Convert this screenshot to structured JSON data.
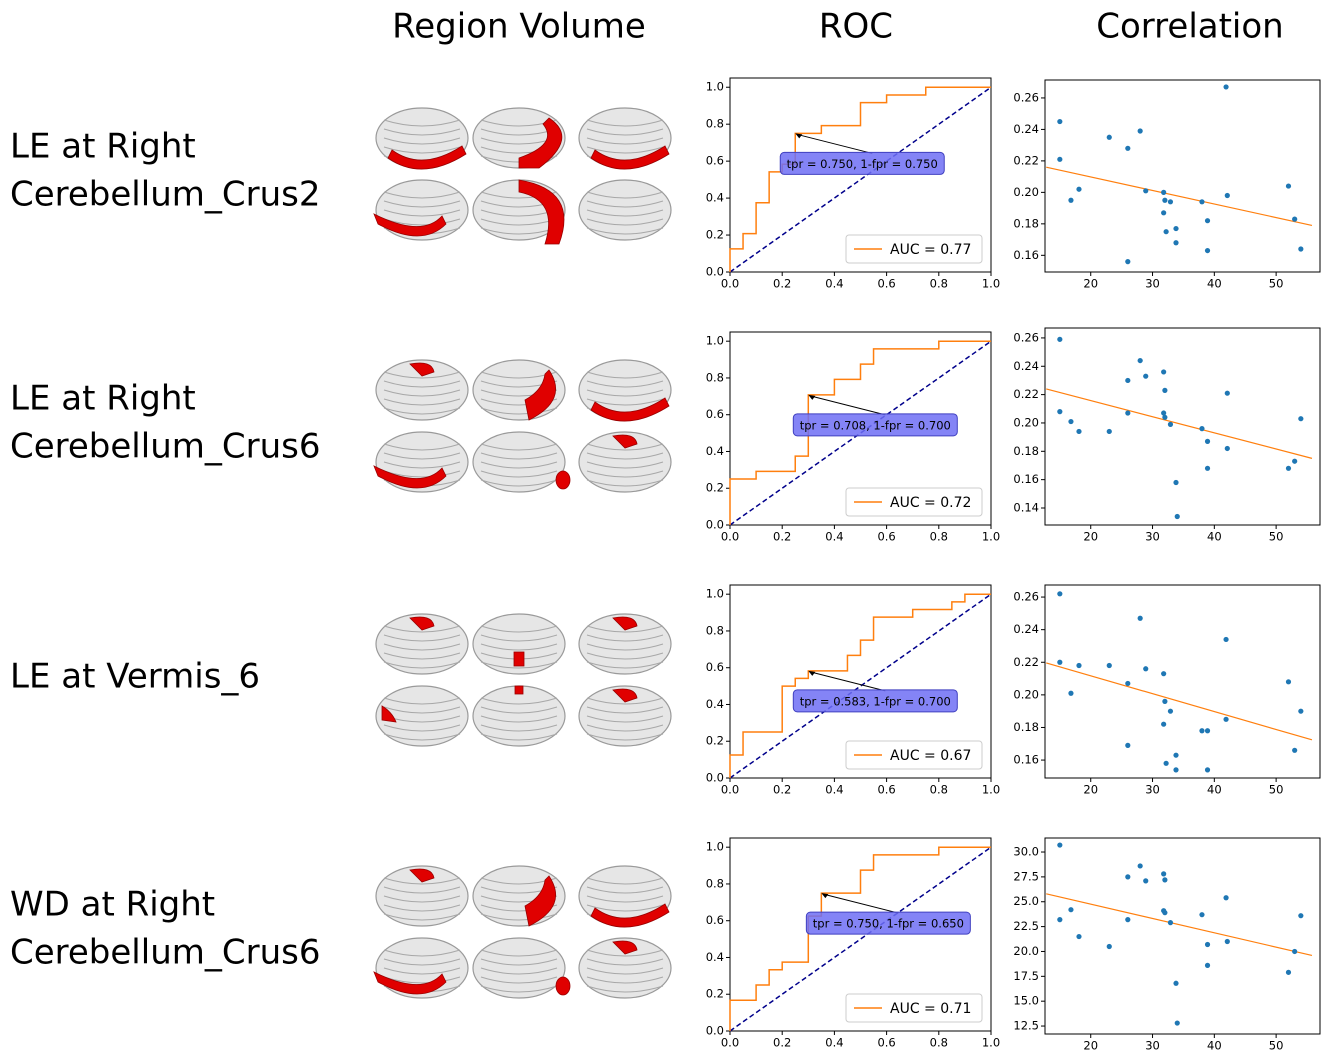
{
  "column_headers": [
    "Region Volume",
    "ROC",
    "Correlation"
  ],
  "row_labels": [
    [
      "LE at Right",
      "Cerebellum_Crus2"
    ],
    [
      "LE at Right",
      "Cerebellum_Crus6"
    ],
    [
      "LE at Vermis_6"
    ],
    [
      "WD at Right",
      "Cerebellum_Crus6"
    ]
  ],
  "chart_data": [
    {
      "type": "line",
      "x": [
        0,
        0,
        0.05,
        0.05,
        0.1,
        0.1,
        0.15,
        0.15,
        0.2,
        0.2,
        0.25,
        0.25,
        0.35,
        0.35,
        0.5,
        0.5,
        0.6,
        0.6,
        0.75,
        0.75,
        1.0
      ],
      "series": [
        {
          "name": "AUC = 0.77",
          "color": "#ff7f0e",
          "values": [
            0,
            0.125,
            0.125,
            0.208,
            0.208,
            0.375,
            0.375,
            0.542,
            0.542,
            0.583,
            0.583,
            0.75,
            0.75,
            0.792,
            0.792,
            0.917,
            0.917,
            0.958,
            0.958,
            1.0,
            1.0
          ]
        }
      ],
      "annotation": {
        "text": "tpr = 0.750, 1-fpr = 0.750",
        "x": 0.25,
        "y": 0.75
      },
      "xlim": [
        0,
        1
      ],
      "ylim": [
        0,
        1.05
      ],
      "xticks": [
        {
          "value": 0,
          "label": "0.0"
        },
        0.2,
        0.4,
        0.6,
        0.8,
        {
          "value": 1,
          "label": "1.0"
        }
      ],
      "yticks": [
        {
          "value": 0,
          "label": "0.0"
        },
        0.2,
        0.4,
        0.6,
        0.8,
        {
          "value": 1,
          "label": "1.0"
        }
      ],
      "legend": "lower right"
    },
    {
      "type": "scatter",
      "x": [
        15,
        15,
        16.8,
        18.1,
        23,
        26,
        26,
        28,
        28.9,
        31.8,
        32,
        31.8,
        32.2,
        32.9,
        33.8,
        33.8,
        38,
        38.9,
        38.9,
        41.9,
        42.1,
        52,
        53,
        54
      ],
      "series": [
        {
          "color": "#1f77b4",
          "values": [
            0.245,
            0.221,
            0.195,
            0.202,
            0.235,
            0.228,
            0.156,
            0.239,
            0.201,
            0.2,
            0.195,
            0.187,
            0.175,
            0.194,
            0.177,
            0.168,
            0.194,
            0.182,
            0.163,
            0.267,
            0.198,
            0.204,
            0.183,
            0.164
          ]
        }
      ],
      "fit": {
        "x": [
          12.8,
          55.8
        ],
        "values": [
          0.216,
          0.179
        ],
        "color": "#ff7f0e"
      },
      "xlim": [
        12.6,
        57.1
      ],
      "ylim": [
        0.1494,
        0.2714
      ],
      "xticks": [
        20,
        30,
        40,
        50
      ],
      "yticks": [
        0.16,
        0.18,
        {
          "value": 0.2,
          "label": "0.20"
        },
        0.22,
        0.24,
        0.26
      ]
    },
    {
      "type": "line",
      "x": [
        0,
        0,
        0.1,
        0.1,
        0.25,
        0.25,
        0.3,
        0.3,
        0.4,
        0.4,
        0.5,
        0.5,
        0.55,
        0.55,
        0.8,
        0.8,
        1.0
      ],
      "series": [
        {
          "name": "AUC = 0.72",
          "color": "#ff7f0e",
          "values": [
            0,
            0.25,
            0.25,
            0.292,
            0.292,
            0.375,
            0.375,
            0.708,
            0.708,
            0.792,
            0.792,
            0.875,
            0.875,
            0.958,
            0.958,
            1.0,
            1.0
          ]
        }
      ],
      "annotation": {
        "text": "tpr = 0.708, 1-fpr = 0.700",
        "x": 0.3,
        "y": 0.708
      },
      "xlim": [
        0,
        1
      ],
      "ylim": [
        0,
        1.05
      ],
      "xticks": [
        {
          "value": 0,
          "label": "0.0"
        },
        0.2,
        0.4,
        0.6,
        0.8,
        {
          "value": 1,
          "label": "1.0"
        }
      ],
      "yticks": [
        {
          "value": 0,
          "label": "0.0"
        },
        0.2,
        0.4,
        0.6,
        0.8,
        {
          "value": 1,
          "label": "1.0"
        }
      ],
      "legend": "lower right"
    },
    {
      "type": "scatter",
      "x": [
        15,
        15,
        16.8,
        18.1,
        23,
        26,
        26,
        28,
        28.9,
        31.8,
        32,
        31.8,
        32,
        32.9,
        33.8,
        34,
        38,
        38.9,
        38.9,
        42.1,
        42.1,
        52,
        53,
        54
      ],
      "series": [
        {
          "color": "#1f77b4",
          "values": [
            0.259,
            0.208,
            0.201,
            0.194,
            0.194,
            0.23,
            0.207,
            0.244,
            0.233,
            0.236,
            0.223,
            0.207,
            0.204,
            0.199,
            0.158,
            0.134,
            0.196,
            0.187,
            0.168,
            0.221,
            0.182,
            0.168,
            0.173,
            0.203
          ]
        }
      ],
      "fit": {
        "x": [
          12.8,
          55.8
        ],
        "values": [
          0.224,
          0.175
        ],
        "color": "#ff7f0e"
      },
      "xlim": [
        12.6,
        57.1
      ],
      "ylim": [
        0.128,
        0.267
      ],
      "xticks": [
        20,
        30,
        40,
        50
      ],
      "yticks": [
        0.14,
        0.16,
        0.18,
        {
          "value": 0.2,
          "label": "0.20"
        },
        0.22,
        0.24,
        0.26
      ]
    },
    {
      "type": "line",
      "x": [
        0,
        0,
        0.05,
        0.05,
        0.2,
        0.2,
        0.25,
        0.25,
        0.3,
        0.3,
        0.45,
        0.45,
        0.5,
        0.5,
        0.55,
        0.55,
        0.7,
        0.7,
        0.85,
        0.85,
        0.9,
        0.9,
        1.0
      ],
      "series": [
        {
          "name": "AUC = 0.67",
          "color": "#ff7f0e",
          "values": [
            0,
            0.125,
            0.125,
            0.25,
            0.25,
            0.5,
            0.5,
            0.542,
            0.542,
            0.583,
            0.583,
            0.667,
            0.667,
            0.75,
            0.75,
            0.875,
            0.875,
            0.917,
            0.917,
            0.958,
            0.958,
            1.0,
            1.0
          ]
        }
      ],
      "annotation": {
        "text": "tpr = 0.583, 1-fpr = 0.700",
        "x": 0.3,
        "y": 0.583
      },
      "xlim": [
        0,
        1
      ],
      "ylim": [
        0,
        1.05
      ],
      "xticks": [
        {
          "value": 0,
          "label": "0.0"
        },
        0.2,
        0.4,
        0.6,
        0.8,
        {
          "value": 1,
          "label": "1.0"
        }
      ],
      "yticks": [
        {
          "value": 0,
          "label": "0.0"
        },
        0.2,
        0.4,
        0.6,
        0.8,
        {
          "value": 1,
          "label": "1.0"
        }
      ],
      "legend": "lower right"
    },
    {
      "type": "scatter",
      "x": [
        15,
        15,
        16.8,
        18.1,
        23,
        26,
        26,
        28,
        28.9,
        31.8,
        32,
        31.8,
        32.2,
        32.9,
        33.8,
        33.8,
        38,
        38.9,
        38.9,
        41.9,
        41.9,
        52,
        53,
        54
      ],
      "series": [
        {
          "color": "#1f77b4",
          "values": [
            0.262,
            0.22,
            0.201,
            0.218,
            0.218,
            0.207,
            0.169,
            0.247,
            0.216,
            0.213,
            0.196,
            0.182,
            0.158,
            0.19,
            0.163,
            0.154,
            0.178,
            0.178,
            0.154,
            0.234,
            0.185,
            0.208,
            0.166,
            0.19
          ]
        }
      ],
      "fit": {
        "x": [
          12.8,
          55.8
        ],
        "values": [
          0.2196,
          0.1724
        ],
        "color": "#ff7f0e"
      },
      "xlim": [
        12.6,
        57.1
      ],
      "ylim": [
        0.149,
        0.2674
      ],
      "xticks": [
        20,
        30,
        40,
        50
      ],
      "yticks": [
        0.16,
        0.18,
        {
          "value": 0.2,
          "label": "0.20"
        },
        0.22,
        0.24,
        0.26
      ]
    },
    {
      "type": "line",
      "x": [
        0,
        0,
        0.1,
        0.1,
        0.15,
        0.15,
        0.2,
        0.2,
        0.3,
        0.3,
        0.35,
        0.35,
        0.5,
        0.5,
        0.55,
        0.55,
        0.8,
        0.8,
        1.0
      ],
      "series": [
        {
          "name": "AUC = 0.71",
          "color": "#ff7f0e",
          "values": [
            0,
            0.167,
            0.167,
            0.25,
            0.25,
            0.333,
            0.333,
            0.375,
            0.375,
            0.625,
            0.625,
            0.75,
            0.75,
            0.875,
            0.875,
            0.958,
            0.958,
            1.0,
            1.0
          ]
        }
      ],
      "annotation": {
        "text": "tpr = 0.750, 1-fpr = 0.650",
        "x": 0.35,
        "y": 0.75
      },
      "xlim": [
        0,
        1
      ],
      "ylim": [
        0,
        1.05
      ],
      "xticks": [
        {
          "value": 0,
          "label": "0.0"
        },
        0.2,
        0.4,
        0.6,
        0.8,
        {
          "value": 1,
          "label": "1.0"
        }
      ],
      "yticks": [
        {
          "value": 0,
          "label": "0.0"
        },
        0.2,
        0.4,
        0.6,
        0.8,
        {
          "value": 1,
          "label": "1.0"
        }
      ],
      "legend": "lower right"
    },
    {
      "type": "scatter",
      "x": [
        15,
        15,
        16.8,
        18.1,
        23,
        26,
        26,
        28,
        28.9,
        31.8,
        32,
        31.8,
        32,
        32.9,
        33.8,
        34,
        38,
        38.9,
        38.9,
        41.9,
        42.1,
        52,
        53,
        54
      ],
      "series": [
        {
          "color": "#1f77b4",
          "values": [
            30.7,
            23.2,
            24.2,
            21.5,
            20.5,
            27.5,
            23.2,
            28.6,
            27.1,
            27.8,
            27.2,
            24.1,
            23.9,
            22.9,
            16.8,
            12.8,
            23.7,
            20.7,
            18.6,
            25.4,
            21.0,
            17.9,
            20.0,
            23.6
          ]
        }
      ],
      "fit": {
        "x": [
          12.8,
          55.8
        ],
        "values": [
          25.8,
          19.6
        ],
        "color": "#ff7f0e"
      },
      "xlim": [
        12.6,
        57.1
      ],
      "ylim": [
        11.7,
        31.41
      ],
      "xticks": [
        20,
        30,
        40,
        50
      ],
      "yticks": [
        12.5,
        {
          "value": 15,
          "label": "15.0"
        },
        17.5,
        {
          "value": 20,
          "label": "20.0"
        },
        22.5,
        {
          "value": 25,
          "label": "25.0"
        },
        27.5,
        {
          "value": 30,
          "label": "30.0"
        }
      ]
    }
  ]
}
